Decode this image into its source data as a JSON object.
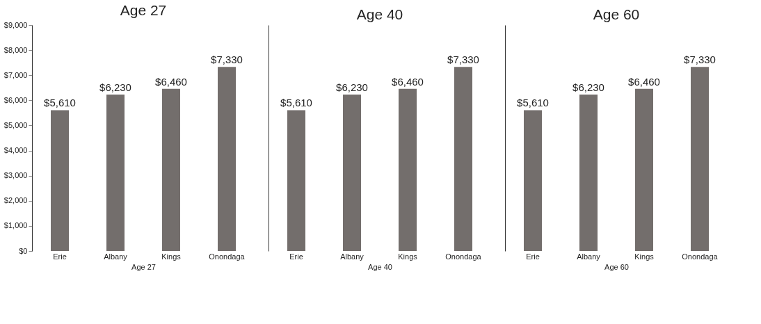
{
  "chart_data": [
    {
      "type": "bar",
      "title": "Age 27",
      "xlabel": "Age 27",
      "categories": [
        "Erie",
        "Albany",
        "Kings",
        "Onondaga"
      ],
      "values": [
        5610,
        6230,
        6460,
        7330
      ],
      "value_labels": [
        "$5,610",
        "$6,230",
        "$6,460",
        "$7,330"
      ],
      "color": "#736e6c",
      "ylim": [
        0,
        9000
      ],
      "yticks": [
        {
          "value": 0,
          "label": "$0"
        },
        {
          "value": 1000,
          "label": "$1,000"
        },
        {
          "value": 2000,
          "label": "$2,000"
        },
        {
          "value": 3000,
          "label": "$3,000"
        },
        {
          "value": 4000,
          "label": "$4,000"
        },
        {
          "value": 5000,
          "label": "$5,000"
        },
        {
          "value": 6000,
          "label": "$6,000"
        },
        {
          "value": 7000,
          "label": "$7,000"
        },
        {
          "value": 8000,
          "label": "$8,000"
        },
        {
          "value": 9000,
          "label": "$9,000"
        }
      ],
      "grid": false,
      "legend": false
    },
    {
      "type": "bar",
      "title": "Age 40",
      "xlabel": "Age 40",
      "categories": [
        "Erie",
        "Albany",
        "Kings",
        "Onondaga"
      ],
      "values": [
        5610,
        6230,
        6460,
        7330
      ],
      "value_labels": [
        "$5,610",
        "$6,230",
        "$6,460",
        "$7,330"
      ],
      "color": "#736e6c",
      "ylim": [
        0,
        9000
      ],
      "tick_labels": "x",
      "grid": false,
      "legend": false
    },
    {
      "type": "bar",
      "title": "Age 60",
      "xlabel": "Age 60",
      "categories": [
        "Erie",
        "Albany",
        "Kings",
        "Onondaga"
      ],
      "values": [
        5610,
        6230,
        6460,
        7330
      ],
      "value_labels": [
        "$5,610",
        "$6,230",
        "$6,460",
        "$7,330"
      ],
      "color": "#736e6c",
      "ylim": [
        0,
        9000
      ],
      "tick_labels": "x",
      "grid": false,
      "legend": false
    }
  ]
}
